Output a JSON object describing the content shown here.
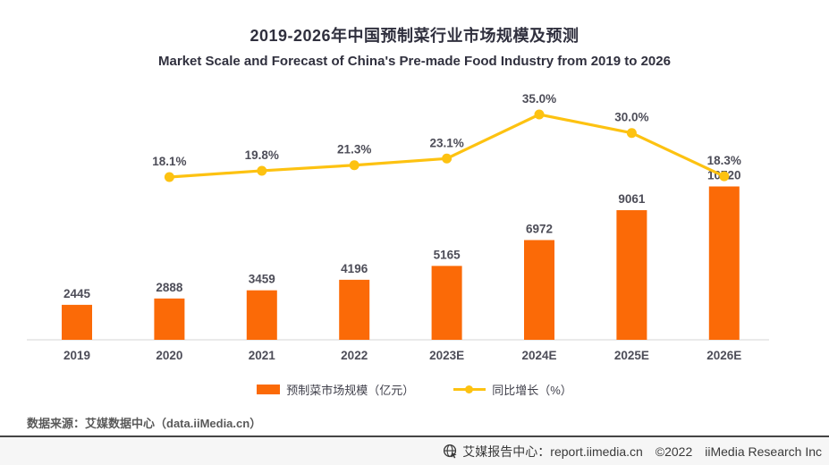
{
  "title": {
    "zh": "2019-2026年中国预制菜行业市场规模及预测",
    "en": "Market Scale and Forecast of China's Pre-made Food Industry from 2019 to 2026"
  },
  "chart_data": {
    "type": "combo",
    "categories": [
      "2019",
      "2020",
      "2021",
      "2022",
      "2023E",
      "2024E",
      "2025E",
      "2026E"
    ],
    "series": [
      {
        "name": "预制菜市场规模（亿元）",
        "type": "bar",
        "values": [
          2445,
          2888,
          3459,
          4196,
          5165,
          6972,
          9061,
          10720
        ],
        "labels": [
          "2445",
          "2888",
          "3459",
          "4196",
          "5165",
          "6972",
          "9061",
          "10720"
        ],
        "color": "#fb6a07",
        "unit": "亿元"
      },
      {
        "name": "同比增长（%）",
        "type": "line",
        "values": [
          null,
          18.1,
          19.8,
          21.3,
          23.1,
          35.0,
          30.0,
          18.3
        ],
        "labels": [
          "",
          "18.1%",
          "19.8%",
          "21.3%",
          "23.1%",
          "35.0%",
          "30.0%",
          "18.3%"
        ],
        "color": "#fdc211",
        "unit": "%"
      }
    ],
    "title": "2019-2026年中国预制菜行业市场规模及预测",
    "subtitle": "Market Scale and Forecast of China's Pre-made Food Industry from 2019 to 2026",
    "xlabel": "",
    "ylabel": "",
    "bar_axis_range": [
      0,
      11000
    ],
    "line_axis_range": [
      0,
      40
    ],
    "grid": false,
    "legend_position": "bottom"
  },
  "legend": {
    "bar_label": "预制菜市场规模（亿元）",
    "line_label": "同比增长（%）"
  },
  "source_note": "数据来源：艾媒数据中心（data.iiMedia.cn）",
  "footer": {
    "site_label": "艾媒报告中心：",
    "site_url": "report.iimedia.cn",
    "copyright": "©2022",
    "company": "iiMedia Research Inc"
  },
  "colors": {
    "bar": "#fb6a07",
    "line": "#fdc211",
    "title_text": "#30303e",
    "label_text": "#4d4d58",
    "axis_line": "#e3e3e3"
  }
}
